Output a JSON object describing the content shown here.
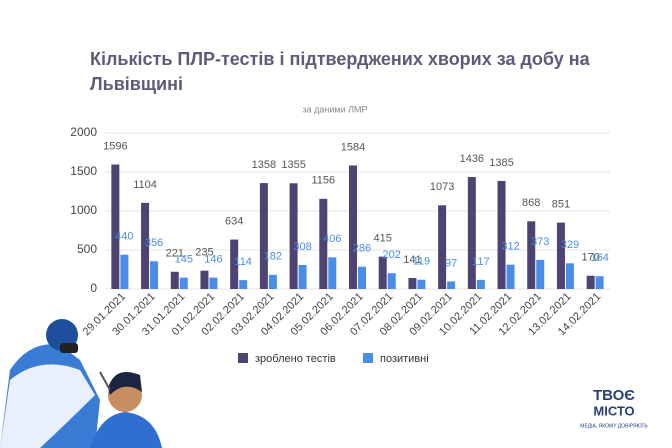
{
  "chart_data": {
    "type": "bar",
    "title": "Кількість ПЛР-тестів і підтверджених хворих за добу на Львівщині",
    "subtitle": "за даними ЛМР",
    "categories": [
      "29.01.2021",
      "30.01.2021",
      "31.01.2021",
      "01.02.2021",
      "02.02.2021",
      "03.02.2021",
      "04.02.2021",
      "05.02.2021",
      "06.02.2021",
      "07.02.2021",
      "08.02.2021",
      "09.02.2021",
      "10.02.2021",
      "11.02.2021",
      "12.02.2021",
      "13.02.2021",
      "14.02.2021"
    ],
    "series": [
      {
        "name": "зроблено тестів",
        "color": "#4e4372",
        "values": [
          1596,
          1104,
          221,
          235,
          634,
          1358,
          1355,
          1156,
          1584,
          415,
          141,
          1073,
          1436,
          1385,
          868,
          851,
          170
        ]
      },
      {
        "name": "позитивні",
        "color": "#4a8de8",
        "values": [
          440,
          356,
          145,
          146,
          114,
          182,
          308,
          406,
          286,
          202,
          119,
          97,
          117,
          312,
          373,
          329,
          164
        ]
      }
    ],
    "ylim": [
      0,
      2000
    ],
    "yticks": [
      0,
      500,
      1000,
      1500,
      2000
    ],
    "grid": true,
    "legend": "bottom"
  },
  "logo": {
    "line1": "ТВОЄ",
    "line2": "МІСТО",
    "tagline": "МЕДІА, ЯКОМУ ДОВІРЯЮТЬ"
  }
}
